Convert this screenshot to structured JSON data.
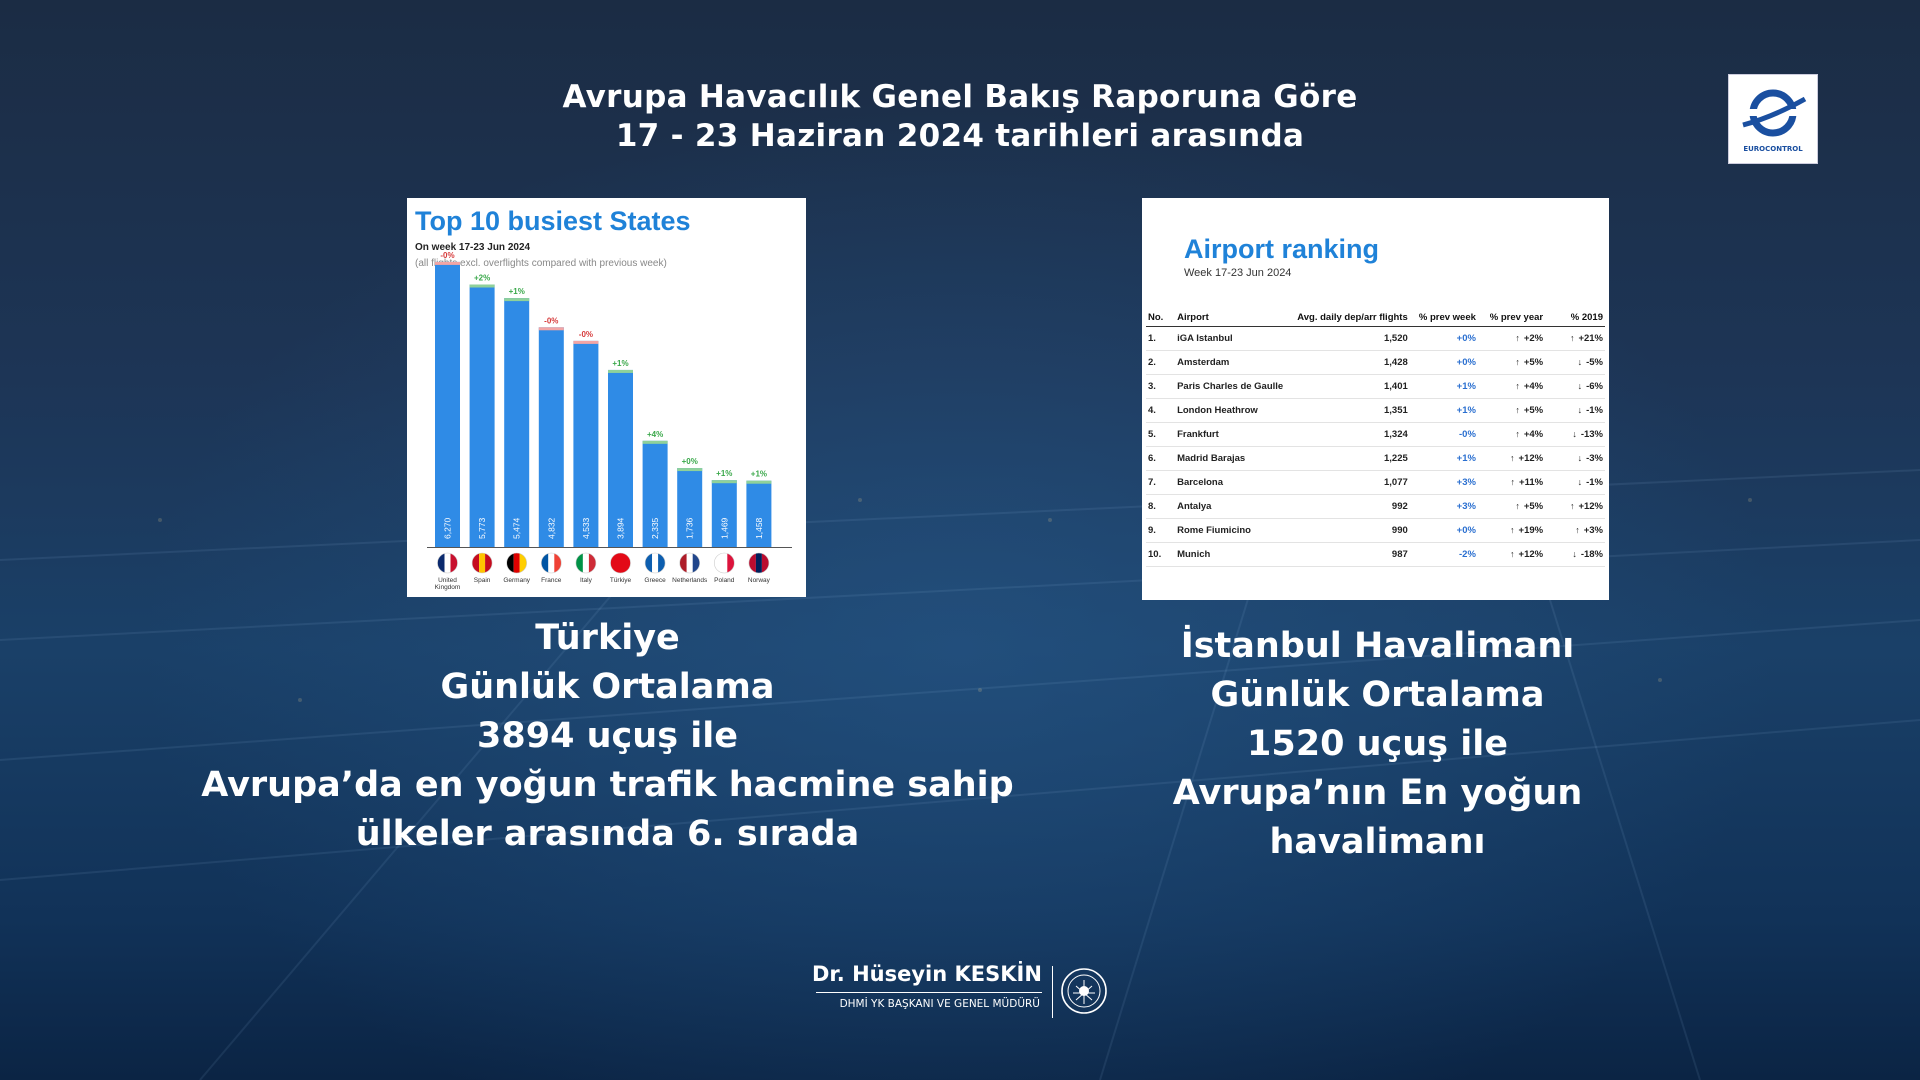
{
  "header": {
    "line1": "Avrupa Havacılık Genel Bakış Raporuna Göre",
    "line2": "17 - 23 Haziran 2024 tarihleri arasında"
  },
  "logo": {
    "text": "EUROCONTROL",
    "icon": "eurocontrol-logo"
  },
  "busiest_states": {
    "title": "Top 10 busiest States",
    "subtitle": "On week 17-23 Jun 2024",
    "note": "(all flights excl. overflights compared with previous week)"
  },
  "chart_data": {
    "type": "bar",
    "title": "Top 10 busiest States",
    "categories": [
      "United Kingdom",
      "Spain",
      "Germany",
      "France",
      "Italy",
      "Türkiye",
      "Greece",
      "Netherlands",
      "Poland",
      "Norway"
    ],
    "values": [
      6270,
      5773,
      5474,
      4832,
      4533,
      3894,
      2335,
      1736,
      1469,
      1458
    ],
    "value_labels": [
      "6,270",
      "5,773",
      "5,474",
      "4,832",
      "4,533",
      "3,894",
      "2,335",
      "1,736",
      "1,469",
      "1,458"
    ],
    "changes": [
      "-0%",
      "+2%",
      "+1%",
      "-0%",
      "-0%",
      "+1%",
      "+4%",
      "+0%",
      "+1%",
      "+1%"
    ],
    "change_colors": [
      "#d63a3a",
      "#3aa84a",
      "#3aa84a",
      "#d63a3a",
      "#d63a3a",
      "#3aa84a",
      "#3aa84a",
      "#3aa84a",
      "#3aa84a",
      "#3aa84a"
    ],
    "bar_color": "#2f8be6",
    "ylim": [
      0,
      6400
    ],
    "grid": false
  },
  "airport_ranking": {
    "title": "Airport ranking",
    "week": "Week 17-23 Jun 2024",
    "columns": [
      "No.",
      "Airport",
      "Avg. daily dep/arr flights",
      "% prev week",
      "% prev year",
      "% 2019"
    ],
    "rows": [
      {
        "no": "1.",
        "airport": "iGA Istanbul",
        "flights": "1,520",
        "prev_week": "+0%",
        "prev_year": "+2%",
        "y2019": "+21%",
        "py_dir": "up",
        "y19_dir": "up"
      },
      {
        "no": "2.",
        "airport": "Amsterdam",
        "flights": "1,428",
        "prev_week": "+0%",
        "prev_year": "+5%",
        "y2019": "-5%",
        "py_dir": "up",
        "y19_dir": "down"
      },
      {
        "no": "3.",
        "airport": "Paris Charles de Gaulle",
        "flights": "1,401",
        "prev_week": "+1%",
        "prev_year": "+4%",
        "y2019": "-6%",
        "py_dir": "up",
        "y19_dir": "down"
      },
      {
        "no": "4.",
        "airport": "London Heathrow",
        "flights": "1,351",
        "prev_week": "+1%",
        "prev_year": "+5%",
        "y2019": "-1%",
        "py_dir": "up",
        "y19_dir": "down"
      },
      {
        "no": "5.",
        "airport": "Frankfurt",
        "flights": "1,324",
        "prev_week": "-0%",
        "prev_year": "+4%",
        "y2019": "-13%",
        "py_dir": "up",
        "y19_dir": "down"
      },
      {
        "no": "6.",
        "airport": "Madrid Barajas",
        "flights": "1,225",
        "prev_week": "+1%",
        "prev_year": "+12%",
        "y2019": "-3%",
        "py_dir": "up",
        "y19_dir": "down"
      },
      {
        "no": "7.",
        "airport": "Barcelona",
        "flights": "1,077",
        "prev_week": "+3%",
        "prev_year": "+11%",
        "y2019": "-1%",
        "py_dir": "up",
        "y19_dir": "down"
      },
      {
        "no": "8.",
        "airport": "Antalya",
        "flights": "992",
        "prev_week": "+3%",
        "prev_year": "+5%",
        "y2019": "+12%",
        "py_dir": "up",
        "y19_dir": "up"
      },
      {
        "no": "9.",
        "airport": "Rome Fiumicino",
        "flights": "990",
        "prev_week": "+0%",
        "prev_year": "+19%",
        "y2019": "+3%",
        "py_dir": "up",
        "y19_dir": "up"
      },
      {
        "no": "10.",
        "airport": "Munich",
        "flights": "987",
        "prev_week": "-2%",
        "prev_year": "+12%",
        "y2019": "-18%",
        "py_dir": "up",
        "y19_dir": "down"
      }
    ]
  },
  "left_caption": {
    "l1": "Türkiye",
    "l2": "Günlük Ortalama",
    "l3": "3894 uçuş ile",
    "l4": "Avrupa’da en yoğun trafik hacmine sahip",
    "l5": "ülkeler arasında 6. sırada"
  },
  "right_caption": {
    "l1": "İstanbul Havalimanı",
    "l2": "Günlük Ortalama",
    "l3": "1520 uçuş ile",
    "l4": "Avrupa’nın En yoğun",
    "l5": "havalimanı"
  },
  "footer": {
    "name": "Dr. Hüseyin KESKİN",
    "role": "DHMİ YK BAŞKANI VE GENEL MÜDÜRÜ",
    "seal_icon": "dhmi-seal-icon"
  }
}
